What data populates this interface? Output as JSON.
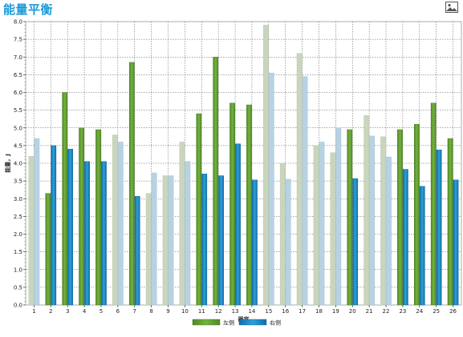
{
  "header": {
    "title": "能量平衡"
  },
  "toolbar": {
    "image_icon": "image-icon"
  },
  "chart_data": {
    "type": "bar",
    "title": "能量平衡",
    "xlabel": "器官",
    "ylabel": "能量，J",
    "ylim": [
      0,
      8
    ],
    "yticks": [
      "0.0",
      "0.5",
      "1.0",
      "1.5",
      "2.0",
      "2.5",
      "3.0",
      "3.5",
      "4.0",
      "4.5",
      "5.0",
      "5.5",
      "6.0",
      "6.5",
      "7.0",
      "7.5",
      "8.0"
    ],
    "grid": true,
    "legend_position": "bottom",
    "categories": [
      "1",
      "2",
      "3",
      "4",
      "5",
      "6",
      "7",
      "8",
      "9",
      "10",
      "11",
      "12",
      "13",
      "14",
      "15",
      "16",
      "17",
      "18",
      "19",
      "20",
      "21",
      "22",
      "23",
      "24",
      "25",
      "26"
    ],
    "series": [
      {
        "name": "左侧",
        "color": "#5c9a2c",
        "values": [
          4.2,
          3.15,
          6.0,
          5.0,
          4.95,
          4.8,
          6.85,
          3.15,
          3.65,
          4.6,
          5.4,
          7.0,
          5.7,
          5.65,
          7.9,
          4.0,
          7.1,
          4.5,
          4.3,
          4.95,
          5.35,
          4.75,
          4.95,
          5.1,
          5.7,
          4.7
        ],
        "muted": [
          true,
          false,
          false,
          false,
          false,
          true,
          false,
          true,
          true,
          true,
          false,
          false,
          false,
          false,
          true,
          true,
          true,
          true,
          true,
          false,
          true,
          true,
          false,
          false,
          false,
          false
        ]
      },
      {
        "name": "右侧",
        "color": "#1a85c0",
        "values": [
          4.7,
          4.5,
          4.4,
          4.05,
          4.05,
          4.6,
          3.07,
          3.73,
          3.65,
          4.05,
          3.7,
          3.65,
          4.55,
          3.53,
          6.55,
          3.55,
          6.45,
          4.6,
          5.0,
          3.57,
          4.77,
          4.18,
          3.83,
          3.35,
          4.38,
          3.53
        ],
        "muted": [
          true,
          false,
          false,
          false,
          false,
          true,
          false,
          true,
          true,
          true,
          false,
          false,
          false,
          false,
          true,
          true,
          true,
          true,
          true,
          false,
          true,
          true,
          false,
          false,
          false,
          false
        ]
      }
    ]
  }
}
